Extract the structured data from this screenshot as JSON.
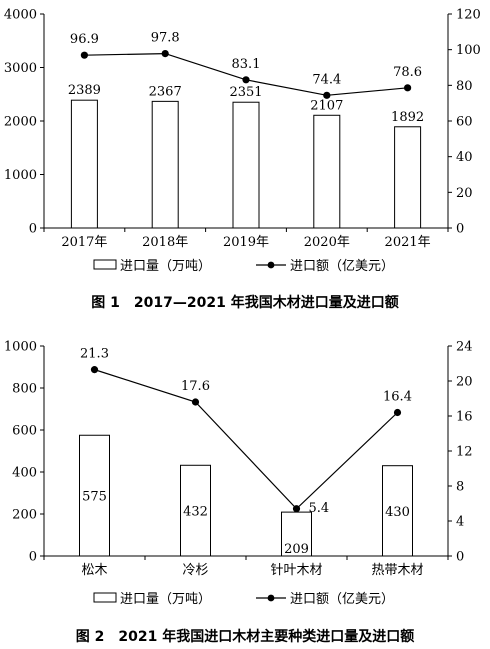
{
  "figure1": {
    "title": "图 1　2017—2021 年我国木材进口量及进口额"
  },
  "figure2": {
    "title": "图 2　2021 年我国进口木材主要种类进口量及进口额"
  },
  "chart_data": [
    {
      "type": "bar",
      "categories": [
        "2017年",
        "2018年",
        "2019年",
        "2020年",
        "2021年"
      ],
      "series": [
        {
          "name": "进口量（万吨）",
          "type": "bar",
          "axis": "left",
          "values": [
            2389,
            2367,
            2351,
            2107,
            1892
          ]
        },
        {
          "name": "进口额（亿美元）",
          "type": "line",
          "axis": "right",
          "values": [
            96.9,
            97.8,
            83.1,
            74.4,
            78.6
          ]
        }
      ],
      "ylim_left": [
        0,
        4000
      ],
      "yticks_left": [
        0,
        1000,
        2000,
        3000,
        4000
      ],
      "ylim_right": [
        0,
        120
      ],
      "yticks_right": [
        0,
        20,
        40,
        60,
        80,
        100,
        120
      ],
      "legend": "bottom",
      "grid": false
    },
    {
      "type": "bar",
      "categories": [
        "松木",
        "冷杉",
        "针叶木材",
        "热带木材"
      ],
      "series": [
        {
          "name": "进口量（万吨）",
          "type": "bar",
          "axis": "left",
          "values": [
            575,
            432,
            209,
            430
          ]
        },
        {
          "name": "进口额（亿美元）",
          "type": "line",
          "axis": "right",
          "values": [
            21.3,
            17.6,
            5.4,
            16.4
          ]
        }
      ],
      "ylim_left": [
        0,
        1000
      ],
      "yticks_left": [
        0,
        200,
        400,
        600,
        800,
        1000
      ],
      "ylim_right": [
        0,
        24
      ],
      "yticks_right": [
        0,
        4,
        8,
        12,
        16,
        20,
        24
      ],
      "legend": "bottom",
      "grid": false
    }
  ]
}
